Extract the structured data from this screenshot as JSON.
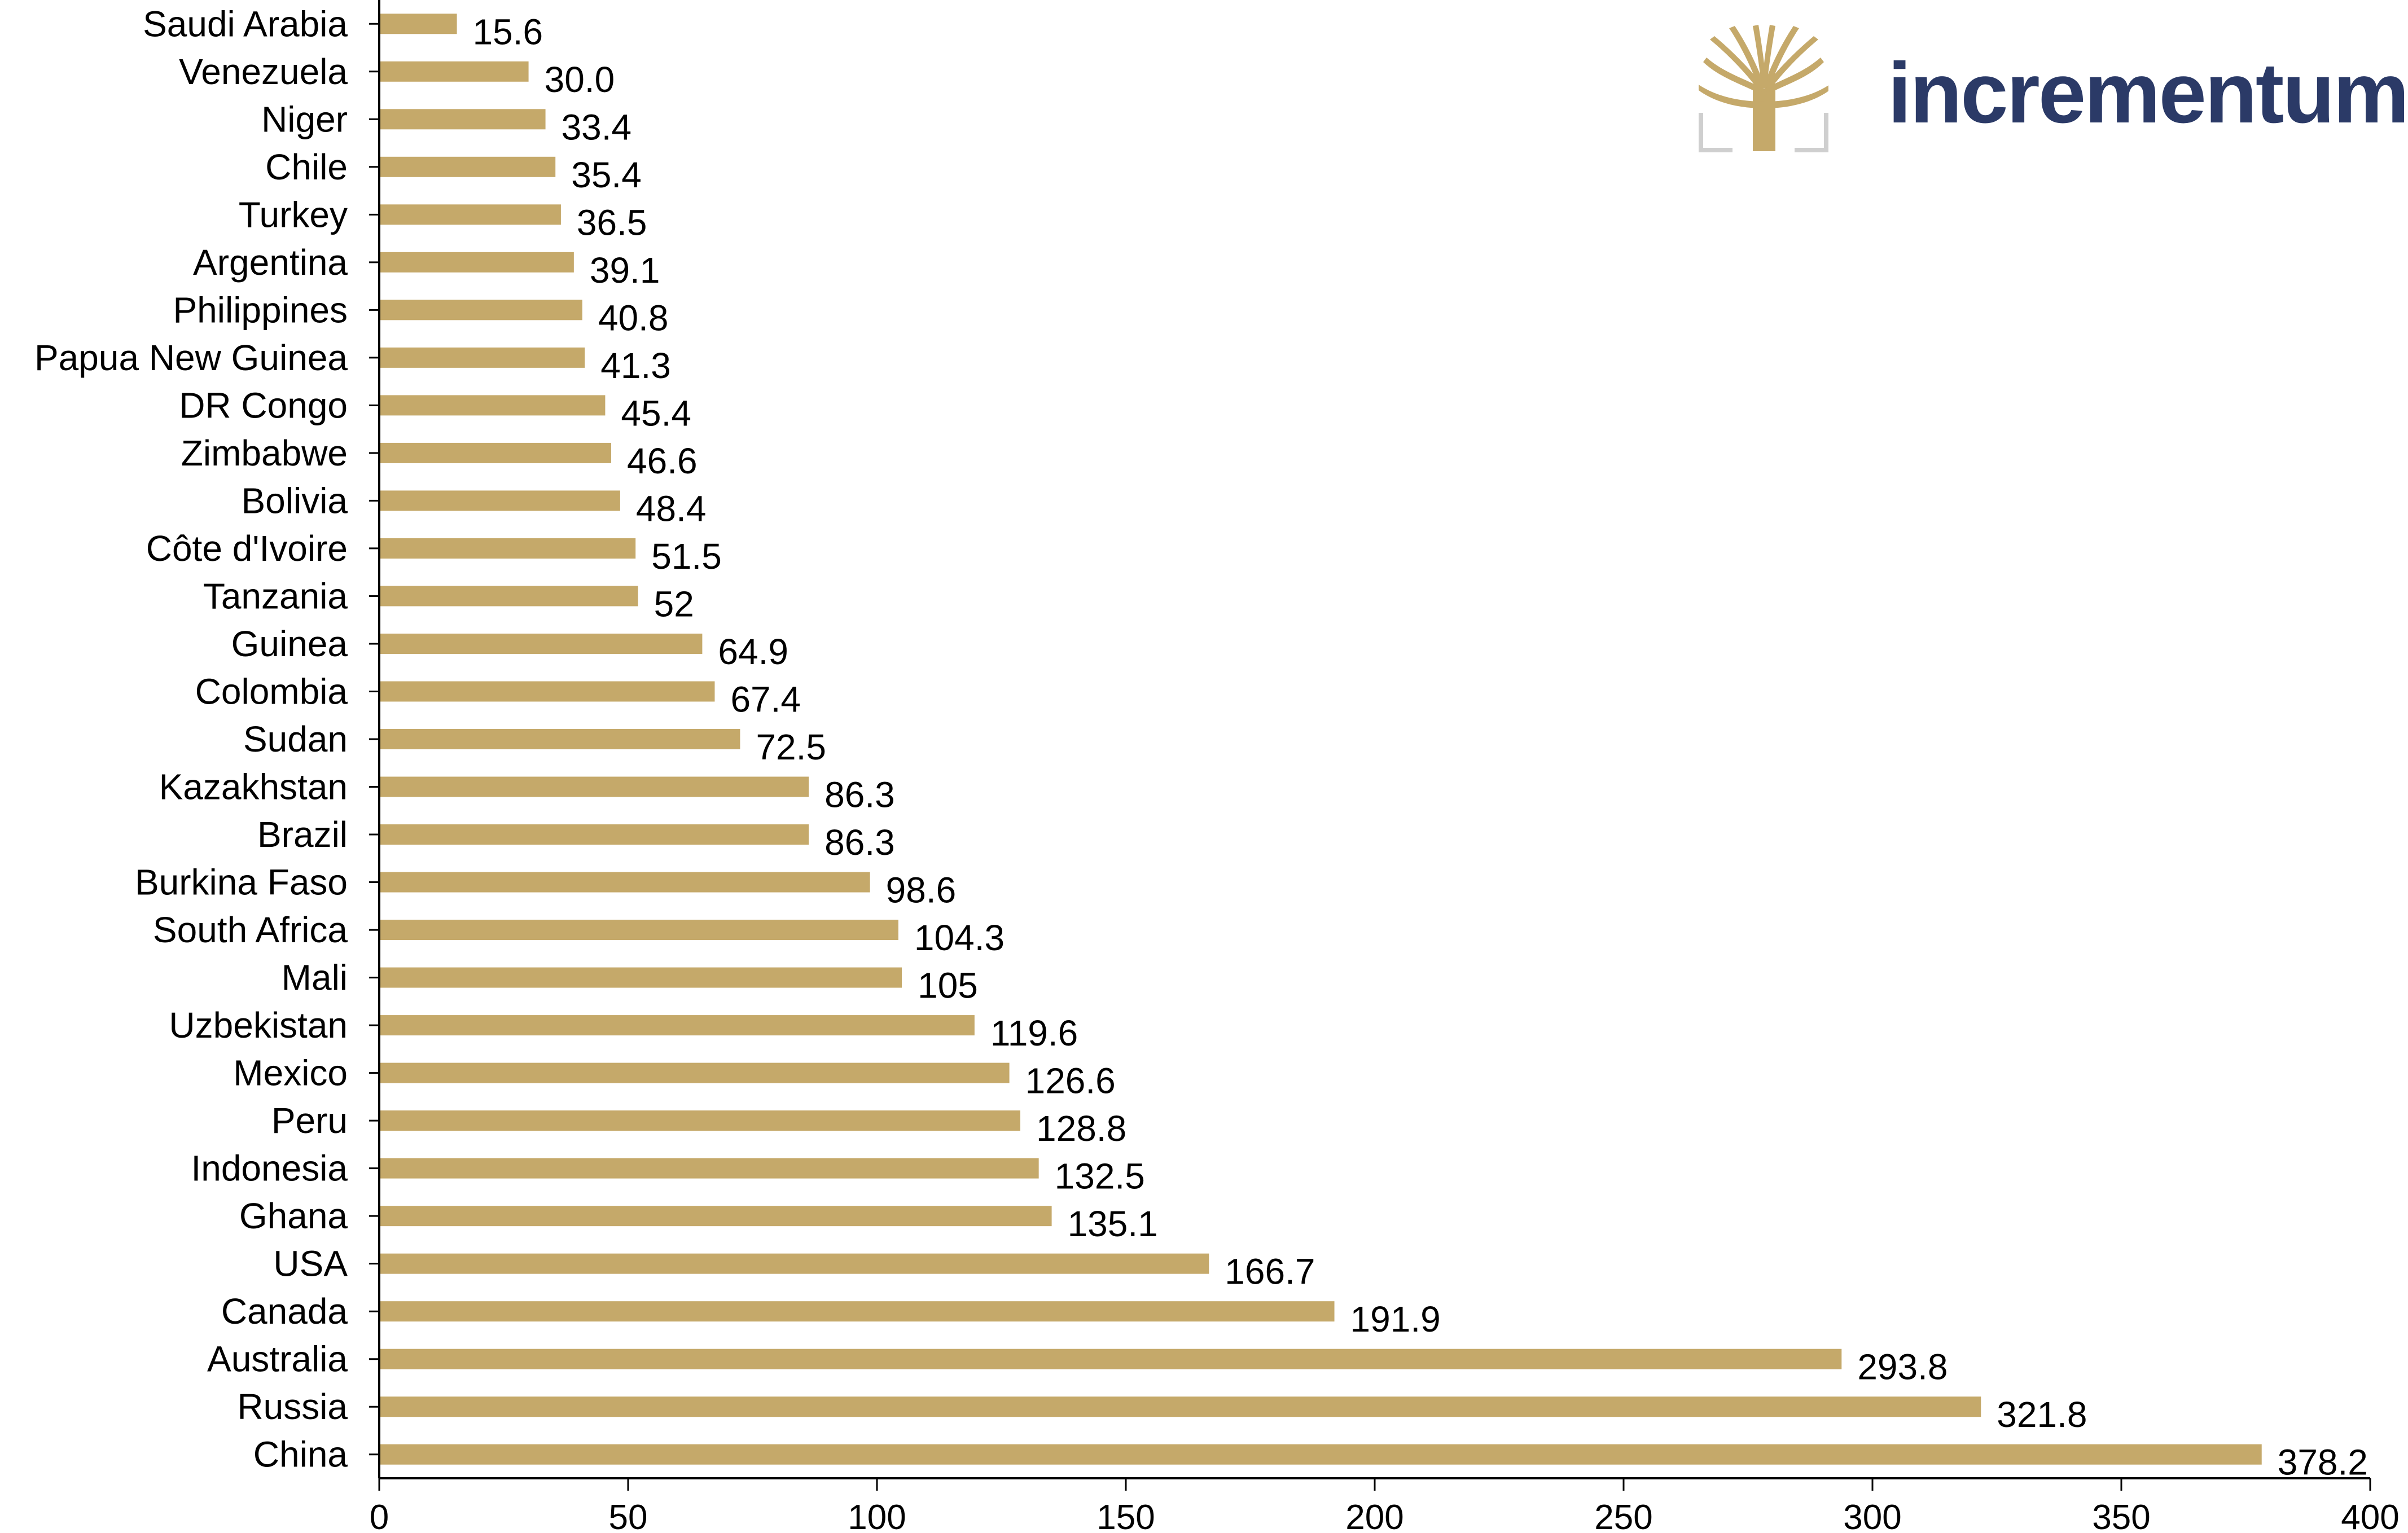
{
  "brand": {
    "name": "incrementum",
    "icon": "tree-icon",
    "color": "#2b3a67",
    "icon_color": "#c5a96a"
  },
  "chart_data": {
    "type": "bar",
    "orientation": "horizontal",
    "bar_color": "#c5a96a",
    "categories": [
      "Saudi Arabia",
      "Venezuela",
      "Niger",
      "Chile",
      "Turkey",
      "Argentina",
      "Philippines",
      "Papua New Guinea",
      "DR Congo",
      "Zimbabwe",
      "Bolivia",
      "Côte d'Ivoire",
      "Tanzania",
      "Guinea",
      "Colombia",
      "Sudan",
      "Kazakhstan",
      "Brazil",
      "Burkina Faso",
      "South Africa",
      "Mali",
      "Uzbekistan",
      "Mexico",
      "Peru",
      "Indonesia",
      "Ghana",
      "USA",
      "Canada",
      "Australia",
      "Russia",
      "China"
    ],
    "values": [
      15.6,
      30.0,
      33.4,
      35.4,
      36.5,
      39.1,
      40.8,
      41.3,
      45.4,
      46.6,
      48.4,
      51.5,
      52,
      64.9,
      67.4,
      72.5,
      86.3,
      86.3,
      98.6,
      104.3,
      105,
      119.6,
      126.6,
      128.8,
      132.5,
      135.1,
      166.7,
      191.9,
      293.8,
      321.8,
      378.2
    ],
    "value_labels": [
      "15.6",
      "30.0",
      "33.4",
      "35.4",
      "36.5",
      "39.1",
      "40.8",
      "41.3",
      "45.4",
      "46.6",
      "48.4",
      "51.5",
      "52",
      "64.9",
      "67.4",
      "72.5",
      "86.3",
      "86.3",
      "98.6",
      "104.3",
      "105",
      "119.6",
      "126.6",
      "128.8",
      "132.5",
      "135.1",
      "166.7",
      "191.9",
      "293.8",
      "321.8",
      "378.2"
    ],
    "xlim": [
      0,
      400
    ],
    "xticks": [
      "0",
      "50",
      "100",
      "150",
      "200",
      "250",
      "300",
      "350",
      "400"
    ],
    "title": "",
    "xlabel": "",
    "ylabel": "",
    "grid": false,
    "legend": "none"
  }
}
